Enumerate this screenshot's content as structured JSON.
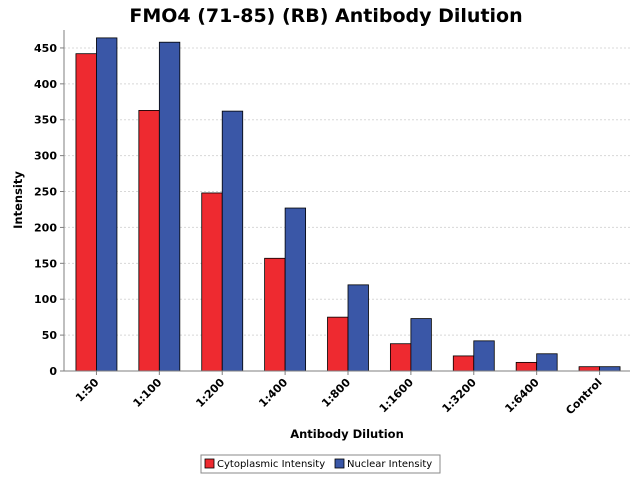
{
  "chart_data": {
    "type": "bar",
    "title": "FMO4 (71-85) (RB) Antibody Dilution",
    "xlabel": "Antibody Dilution",
    "ylabel": "Intensity",
    "categories": [
      "1:50",
      "1:100",
      "1:200",
      "1:400",
      "1:800",
      "1:1600",
      "1:3200",
      "1:6400",
      "Control"
    ],
    "series": [
      {
        "name": "Cytoplasmic Intensity",
        "color": "#ee2a30",
        "values": [
          442,
          363,
          248,
          157,
          75,
          38,
          21,
          12,
          6
        ]
      },
      {
        "name": "Nuclear Intensity",
        "color": "#3a57a7",
        "values": [
          464,
          458,
          362,
          227,
          120,
          73,
          42,
          24,
          6
        ]
      }
    ],
    "ylim": [
      0,
      475
    ],
    "yticks": [
      0,
      50,
      100,
      150,
      200,
      250,
      300,
      350,
      400,
      450
    ],
    "grid": true,
    "legend": "bottom"
  }
}
